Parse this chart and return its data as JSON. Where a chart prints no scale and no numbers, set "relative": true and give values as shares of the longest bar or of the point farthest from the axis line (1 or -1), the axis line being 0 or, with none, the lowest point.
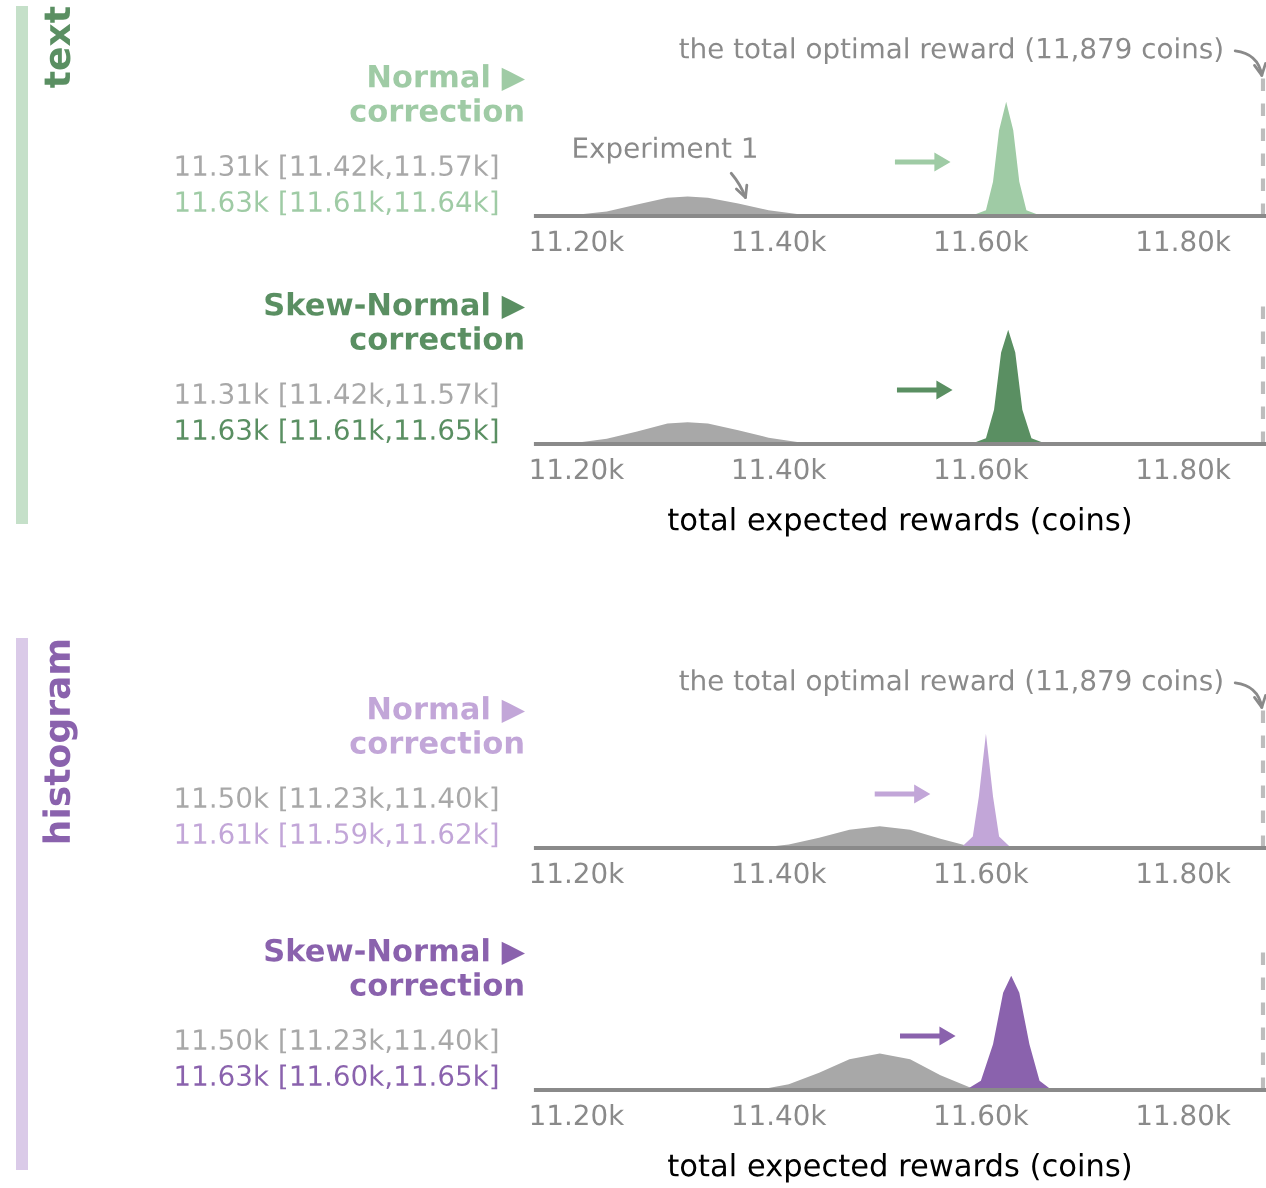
{
  "chart_data": [
    {
      "type": "area",
      "title": "Normal ▶\ncorrection",
      "relative": true,
      "xlim": [
        11160,
        11880
      ],
      "xticks": [
        {
          "value": 11200,
          "label": "11.20k"
        },
        {
          "value": 11400,
          "label": "11.40k"
        },
        {
          "value": 11600,
          "label": "11.60k"
        },
        {
          "value": 11800,
          "label": "11.80k"
        }
      ],
      "series": [
        {
          "name": "11.31k [11.42k,11.57k]",
          "color": "#a8a8a8",
          "x": [
            11160,
            11200,
            11230,
            11260,
            11290,
            11310,
            11330,
            11360,
            11390,
            11420,
            11450
          ],
          "values": [
            0,
            0.01,
            0.04,
            0.1,
            0.16,
            0.17,
            0.16,
            0.11,
            0.05,
            0.015,
            0
          ]
        },
        {
          "name": "11.63k [11.61k,11.64k]",
          "color": "#9fcba5",
          "x": [
            11590,
            11605,
            11612,
            11618,
            11625,
            11632,
            11638,
            11645,
            11660
          ],
          "values": [
            0,
            0.05,
            0.3,
            0.75,
            1,
            0.75,
            0.3,
            0.05,
            0
          ]
        }
      ],
      "ref_lines": [
        {
          "axis": "x",
          "value": 11879,
          "label": "the total optimal reward (11,879 coins)",
          "color": "#bdbdbd",
          "line_style": "dashed"
        }
      ],
      "annotations": [
        {
          "text": "Experiment 1",
          "x": 11370,
          "y": 0.09
        },
        "text"
      ]
    },
    {
      "type": "area",
      "title": "Skew-Normal ▶\ncorrection",
      "relative": true,
      "xlabel": "total expected rewards (coins)",
      "xlim": [
        11160,
        11880
      ],
      "xticks": [
        {
          "value": 11200,
          "label": "11.20k"
        },
        {
          "value": 11400,
          "label": "11.40k"
        },
        {
          "value": 11600,
          "label": "11.60k"
        },
        {
          "value": 11800,
          "label": "11.80k"
        }
      ],
      "series": [
        {
          "name": "11.31k [11.42k,11.57k]",
          "color": "#a8a8a8",
          "x": [
            11160,
            11200,
            11230,
            11260,
            11290,
            11310,
            11330,
            11360,
            11390,
            11420,
            11450
          ],
          "values": [
            0,
            0.01,
            0.045,
            0.11,
            0.18,
            0.19,
            0.18,
            0.12,
            0.055,
            0.015,
            0
          ]
        },
        {
          "name": "11.63k [11.61k,11.65k]",
          "color": "#5a8f62",
          "x": [
            11590,
            11605,
            11613,
            11620,
            11627,
            11634,
            11641,
            11650,
            11665
          ],
          "values": [
            0,
            0.05,
            0.3,
            0.8,
            1,
            0.8,
            0.3,
            0.05,
            0
          ]
        }
      ],
      "ref_lines": [
        {
          "axis": "x",
          "value": 11879,
          "label": null,
          "color": "#bdbdbd",
          "line_style": "dashed"
        }
      ]
    },
    {
      "type": "area",
      "title": "Normal ▶\ncorrection",
      "relative": true,
      "xlim": [
        11160,
        11880
      ],
      "xticks": [
        {
          "value": 11200,
          "label": "11.20k"
        },
        {
          "value": 11400,
          "label": "11.40k"
        },
        {
          "value": 11600,
          "label": "11.60k"
        },
        {
          "value": 11800,
          "label": "11.80k"
        }
      ],
      "series": [
        {
          "name": "11.50k [11.23k,11.40k]",
          "color": "#a8a8a8",
          "x": [
            11380,
            11410,
            11440,
            11470,
            11500,
            11530,
            11560,
            11590,
            11600
          ],
          "values": [
            0,
            0.03,
            0.09,
            0.16,
            0.19,
            0.16,
            0.08,
            0.01,
            0
          ]
        },
        {
          "name": "11.61k [11.59k,11.62k]",
          "color": "#c2a6d8",
          "x": [
            11580,
            11592,
            11598,
            11605,
            11612,
            11618,
            11630
          ],
          "values": [
            0,
            0.1,
            0.45,
            1,
            0.45,
            0.1,
            0
          ]
        }
      ],
      "ref_lines": [
        {
          "axis": "x",
          "value": 11879,
          "label": "the total optimal reward (11,879 coins)",
          "color": "#bdbdbd",
          "line_style": "dashed"
        }
      ],
      "annotations": [
        "histogram"
      ]
    },
    {
      "type": "area",
      "title": "Skew-Normal ▶\ncorrection",
      "relative": true,
      "xlabel": "total expected rewards (coins)",
      "xlim": [
        11160,
        11880
      ],
      "xticks": [
        {
          "value": 11200,
          "label": "11.20k"
        },
        {
          "value": 11400,
          "label": "11.40k"
        },
        {
          "value": 11600,
          "label": "11.60k"
        },
        {
          "value": 11800,
          "label": "11.80k"
        }
      ],
      "series": [
        {
          "name": "11.50k [11.23k,11.40k]",
          "color": "#a8a8a8",
          "x": [
            11380,
            11410,
            11440,
            11470,
            11500,
            11530,
            11560,
            11590,
            11600
          ],
          "values": [
            0,
            0.05,
            0.15,
            0.27,
            0.32,
            0.27,
            0.13,
            0.02,
            0
          ]
        },
        {
          "name": "11.63k [11.60k,11.65k]",
          "color": "#8a62ad",
          "x": [
            11585,
            11600,
            11612,
            11622,
            11630,
            11638,
            11648,
            11658,
            11670
          ],
          "values": [
            0,
            0.08,
            0.4,
            0.85,
            1,
            0.85,
            0.4,
            0.08,
            0
          ]
        }
      ],
      "ref_lines": [
        {
          "axis": "x",
          "value": 11879,
          "label": null,
          "color": "#bdbdbd",
          "line_style": "dashed"
        }
      ]
    }
  ]
}
